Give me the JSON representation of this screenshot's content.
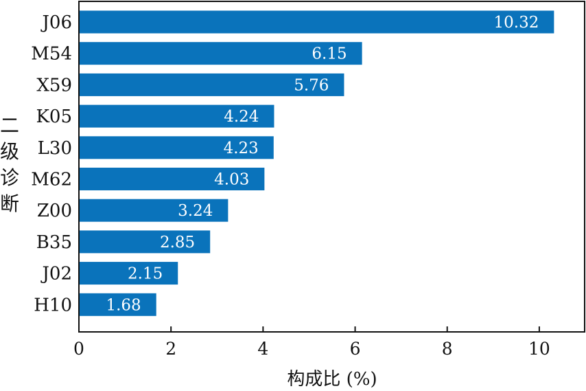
{
  "chart_data": {
    "type": "bar",
    "orientation": "horizontal",
    "title": "",
    "xlabel": "构成比 (%)",
    "ylabel": "二级诊断",
    "categories": [
      "J06",
      "M54",
      "X59",
      "K05",
      "L30",
      "M62",
      "Z00",
      "B35",
      "J02",
      "H10"
    ],
    "values": [
      10.32,
      6.15,
      5.76,
      4.24,
      4.23,
      4.03,
      3.24,
      2.85,
      2.15,
      1.68
    ],
    "xlim": [
      0,
      11
    ],
    "xticks": [
      0,
      2,
      4,
      6,
      8,
      10
    ],
    "grid": false,
    "legend": "none",
    "bar_color": "#0a73bb",
    "value_label_color": "#ffffff"
  }
}
